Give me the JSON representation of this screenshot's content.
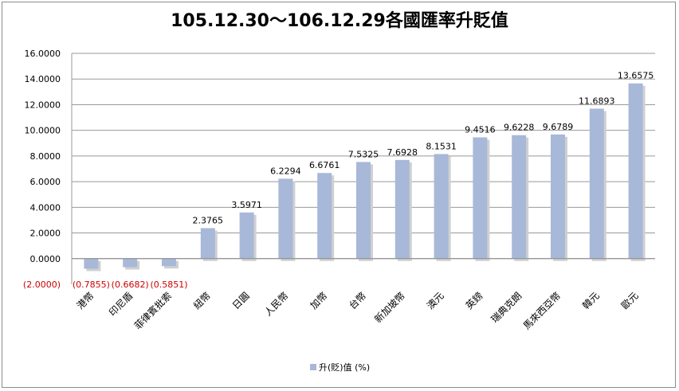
{
  "chart_data": {
    "type": "bar",
    "title": "105.12.30～106.12.29各國匯率升貶值",
    "categories": [
      "港幣",
      "印尼盾",
      "菲律賓批索",
      "紐幣",
      "日圓",
      "人民幣",
      "加幣",
      "台幣",
      "新加坡幣",
      "澳元",
      "英鎊",
      "瑞典克朗",
      "馬來西亞幣",
      "韓元",
      "歐元"
    ],
    "series": [
      {
        "name": "升(貶)值 (%)",
        "values": [
          -0.7855,
          -0.6682,
          -0.5851,
          2.3765,
          3.5971,
          6.2294,
          6.6761,
          7.5325,
          7.6928,
          8.1531,
          9.4516,
          9.6228,
          9.6789,
          11.6893,
          13.6575
        ],
        "labels": [
          "(0.7855)",
          "(0.6682)",
          "(0.5851)",
          "2.3765",
          "3.5971",
          "6.2294",
          "6.6761",
          "7.5325",
          "7.6928",
          "8.1531",
          "9.4516",
          "9.6228",
          "9.6789",
          "11.6893",
          "13.6575"
        ]
      }
    ],
    "y_ticks": [
      16,
      14,
      12,
      10,
      8,
      6,
      4,
      2,
      0,
      -2
    ],
    "y_tick_labels": [
      "16.0000",
      "14.0000",
      "12.0000",
      "10.0000",
      "8.0000",
      "6.0000",
      "4.0000",
      "2.0000",
      "0.0000",
      "(2.0000)"
    ],
    "ylim": [
      -2,
      16
    ],
    "grid": true,
    "legend_position": "bottom",
    "colors": {
      "bar": "#a8b8d8",
      "bar_shadow": "#d0d0d0",
      "negative_text": "#cc0000",
      "grid": "#999999"
    }
  }
}
